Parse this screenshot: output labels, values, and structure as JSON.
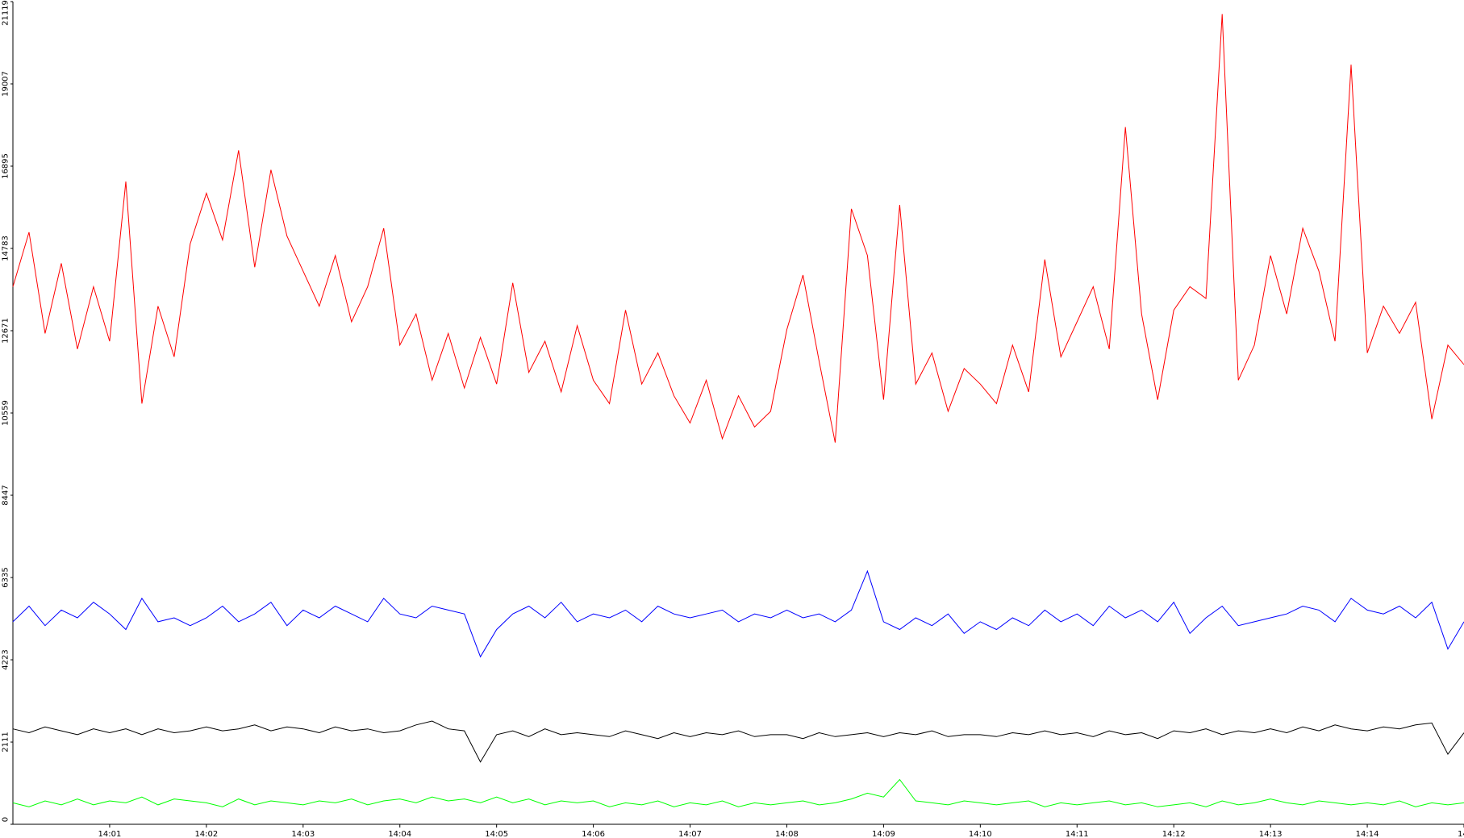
{
  "chart_data": {
    "type": "line",
    "x": [
      0,
      0.167,
      0.333,
      0.5,
      0.667,
      0.833,
      1,
      1.167,
      1.333,
      1.5,
      1.667,
      1.833,
      2,
      2.167,
      2.333,
      2.5,
      2.667,
      2.833,
      3,
      3.167,
      3.333,
      3.5,
      3.667,
      3.833,
      4,
      4.167,
      4.333,
      4.5,
      4.667,
      4.833,
      5,
      5.167,
      5.333,
      5.5,
      5.667,
      5.833,
      6,
      6.167,
      6.333,
      6.5,
      6.667,
      6.833,
      7,
      7.167,
      7.333,
      7.5,
      7.667,
      7.833,
      8,
      8.167,
      8.333,
      8.5,
      8.667,
      8.833,
      9,
      9.167,
      9.333,
      9.5,
      9.667,
      9.833,
      10,
      10.167,
      10.333,
      10.5,
      10.667,
      10.833,
      11,
      11.167,
      11.333,
      11.5,
      11.667,
      11.833,
      12,
      12.167,
      12.333,
      12.5,
      12.667,
      12.833,
      13,
      13.167,
      13.333,
      13.5,
      13.667,
      13.833,
      14,
      14.167,
      14.333,
      14.5,
      14.667,
      14.833,
      15
    ],
    "series": [
      {
        "color": "#ff0000",
        "values": [
          13800,
          15200,
          12600,
          14400,
          12200,
          13800,
          12400,
          16500,
          10800,
          13300,
          12000,
          14900,
          16200,
          15000,
          17300,
          14300,
          16800,
          15100,
          14200,
          13300,
          14600,
          12900,
          13800,
          15300,
          12300,
          13100,
          11400,
          12600,
          11200,
          12500,
          11300,
          13900,
          11600,
          12400,
          11100,
          12800,
          11400,
          10800,
          13200,
          11300,
          12100,
          11000,
          10300,
          11400,
          9900,
          11000,
          10200,
          10600,
          12700,
          14100,
          11900,
          9800,
          15800,
          14600,
          10900,
          15900,
          11300,
          12100,
          10600,
          11700,
          11300,
          10800,
          12300,
          11100,
          14500,
          12000,
          12900,
          13800,
          12200,
          17900,
          13100,
          10900,
          13200,
          13800,
          13500,
          20800,
          11400,
          12300,
          14600,
          13100,
          15300,
          14200,
          12400,
          19500,
          12100,
          13300,
          12600,
          13400,
          10400,
          12300,
          11800
        ]
      },
      {
        "color": "#0000ff",
        "values": [
          5200,
          5600,
          5100,
          5500,
          5300,
          5700,
          5400,
          5000,
          5800,
          5200,
          5300,
          5100,
          5300,
          5600,
          5200,
          5400,
          5700,
          5100,
          5500,
          5300,
          5600,
          5400,
          5200,
          5800,
          5400,
          5300,
          5600,
          5500,
          5400,
          4300,
          5000,
          5400,
          5600,
          5300,
          5700,
          5200,
          5400,
          5300,
          5500,
          5200,
          5600,
          5400,
          5300,
          5400,
          5500,
          5200,
          5400,
          5300,
          5500,
          5300,
          5400,
          5200,
          5500,
          6500,
          5200,
          5000,
          5300,
          5100,
          5400,
          4900,
          5200,
          5000,
          5300,
          5100,
          5500,
          5200,
          5400,
          5100,
          5600,
          5300,
          5500,
          5200,
          5700,
          4900,
          5300,
          5600,
          5100,
          5200,
          5300,
          5400,
          5600,
          5500,
          5200,
          5800,
          5500,
          5400,
          5600,
          5300,
          5700,
          4500,
          5200
        ]
      },
      {
        "color": "#000000",
        "values": [
          2450,
          2350,
          2500,
          2400,
          2300,
          2450,
          2350,
          2450,
          2300,
          2450,
          2350,
          2400,
          2500,
          2400,
          2450,
          2550,
          2400,
          2500,
          2450,
          2350,
          2500,
          2400,
          2450,
          2350,
          2400,
          2550,
          2650,
          2450,
          2400,
          1600,
          2300,
          2400,
          2250,
          2450,
          2300,
          2350,
          2300,
          2250,
          2400,
          2300,
          2200,
          2350,
          2250,
          2350,
          2300,
          2400,
          2250,
          2300,
          2300,
          2200,
          2350,
          2250,
          2300,
          2350,
          2250,
          2350,
          2300,
          2400,
          2250,
          2300,
          2300,
          2250,
          2350,
          2300,
          2400,
          2300,
          2350,
          2250,
          2400,
          2300,
          2350,
          2200,
          2400,
          2350,
          2450,
          2300,
          2400,
          2350,
          2450,
          2350,
          2500,
          2400,
          2550,
          2450,
          2400,
          2500,
          2450,
          2550,
          2600,
          1800,
          2350
        ]
      },
      {
        "color": "#00ff00",
        "values": [
          550,
          450,
          600,
          500,
          650,
          500,
          600,
          550,
          700,
          500,
          650,
          600,
          550,
          450,
          650,
          500,
          600,
          550,
          500,
          600,
          550,
          650,
          500,
          600,
          650,
          550,
          700,
          600,
          650,
          550,
          700,
          550,
          650,
          500,
          600,
          550,
          600,
          450,
          550,
          500,
          600,
          450,
          550,
          500,
          600,
          450,
          550,
          500,
          550,
          600,
          500,
          550,
          650,
          800,
          700,
          1150,
          600,
          550,
          500,
          600,
          550,
          500,
          550,
          600,
          450,
          550,
          500,
          550,
          600,
          500,
          550,
          450,
          500,
          550,
          450,
          600,
          500,
          550,
          650,
          550,
          500,
          600,
          550,
          500,
          550,
          500,
          600,
          450,
          550,
          500,
          550
        ]
      }
    ],
    "xlim": [
      0,
      15
    ],
    "xticks": [
      {
        "value": 1,
        "label": "14:01"
      },
      {
        "value": 2,
        "label": "14:02"
      },
      {
        "value": 3,
        "label": "14:03"
      },
      {
        "value": 4,
        "label": "14:04"
      },
      {
        "value": 5,
        "label": "14:05"
      },
      {
        "value": 6,
        "label": "14:06"
      },
      {
        "value": 7,
        "label": "14:07"
      },
      {
        "value": 8,
        "label": "14:08"
      },
      {
        "value": 9,
        "label": "14:09"
      },
      {
        "value": 10,
        "label": "14:10"
      },
      {
        "value": 11,
        "label": "14:11"
      },
      {
        "value": 12,
        "label": "14:12"
      },
      {
        "value": 13,
        "label": "14:13"
      },
      {
        "value": 14,
        "label": "14:14"
      },
      {
        "value": 15,
        "label": "14:"
      }
    ],
    "ylim": [
      0,
      21119
    ],
    "yticks": [
      0,
      2111,
      4223,
      6335,
      8447,
      10559,
      12671,
      14783,
      16895,
      19007,
      21119
    ]
  }
}
